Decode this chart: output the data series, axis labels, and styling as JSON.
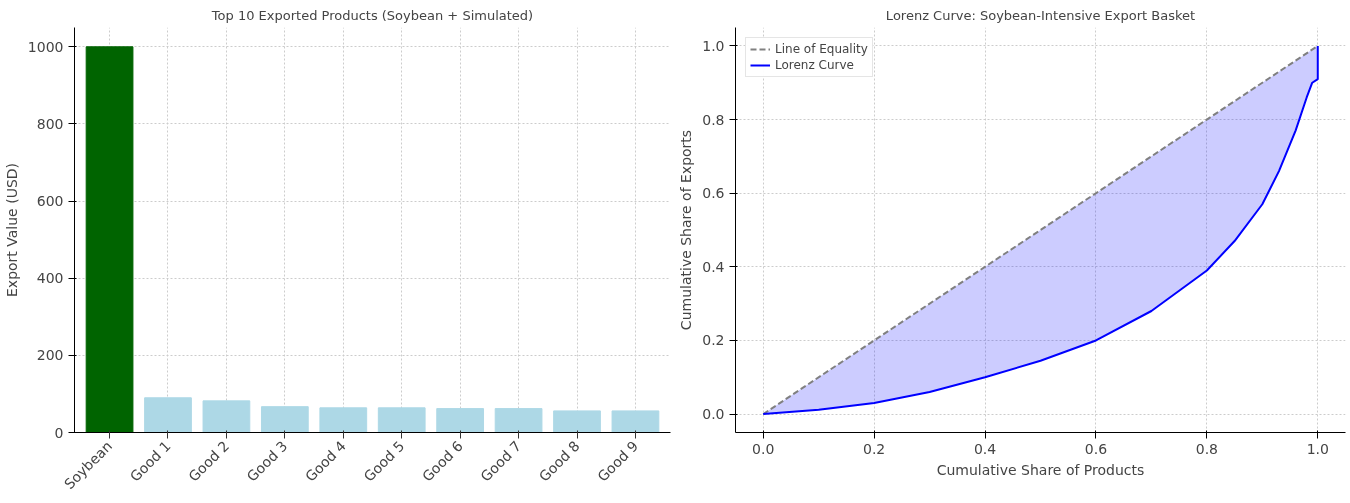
{
  "chart_data": [
    {
      "type": "bar",
      "title": "Top 10 Exported Products (Soybean + Simulated)",
      "ylabel": "Export Value (USD)",
      "categories": [
        "Soybean",
        "Good 1",
        "Good 2",
        "Good 3",
        "Good 4",
        "Good 5",
        "Good 6",
        "Good 7",
        "Good 8",
        "Good 9"
      ],
      "values": [
        1000,
        90,
        82,
        67,
        64,
        64,
        62,
        62,
        56,
        56
      ],
      "colors": [
        "#006400",
        "#add8e6",
        "#add8e6",
        "#add8e6",
        "#add8e6",
        "#add8e6",
        "#add8e6",
        "#add8e6",
        "#add8e6",
        "#add8e6"
      ],
      "ylim": [
        0,
        1050
      ],
      "yticks": [
        0,
        200,
        400,
        600,
        800,
        1000
      ],
      "grid": true
    },
    {
      "type": "line",
      "title": "Lorenz Curve: Soybean-Intensive Export Basket",
      "xlabel": "Cumulative Share of Products",
      "ylabel": "Cumulative Share of Exports",
      "legend": "top left",
      "series": [
        {
          "name": "Line of Equality",
          "color": "#808080",
          "line_style": "dashed",
          "x": [
            0,
            1
          ],
          "values": [
            0,
            1
          ]
        },
        {
          "name": "Lorenz Curve",
          "color": "#0000ff",
          "line_style": "solid",
          "x": [
            0,
            0.1,
            0.2,
            0.3,
            0.4,
            0.5,
            0.6,
            0.7,
            0.8,
            0.85,
            0.9,
            0.93,
            0.96,
            0.98,
            0.99,
            1.0,
            1.0
          ],
          "values": [
            0,
            0.012,
            0.03,
            0.06,
            0.1,
            0.145,
            0.2,
            0.28,
            0.39,
            0.47,
            0.57,
            0.66,
            0.77,
            0.86,
            0.9,
            0.91,
            1.0
          ],
          "lower": [
            0,
            0.012,
            0.03,
            0.06,
            0.1,
            0.145,
            0.2,
            0.28,
            0.39,
            0.47,
            0.57,
            0.66,
            0.77,
            0.86,
            0.9,
            0.91,
            1.0
          ],
          "upper": [
            0,
            0.1,
            0.2,
            0.3,
            0.4,
            0.5,
            0.6,
            0.7,
            0.8,
            0.85,
            0.9,
            0.93,
            0.96,
            0.98,
            0.99,
            1.0,
            1.0
          ]
        }
      ],
      "xlim": [
        -0.05,
        1.05
      ],
      "ylim": [
        -0.05,
        1.05
      ],
      "xticks": [
        {
          "value": 0,
          "label": "0.0"
        },
        {
          "value": 0.2,
          "label": "0.2"
        },
        {
          "value": 0.4,
          "label": "0.4"
        },
        {
          "value": 0.6,
          "label": "0.6"
        },
        {
          "value": 0.8,
          "label": "0.8"
        },
        {
          "value": 1,
          "label": "1.0"
        }
      ],
      "yticks": [
        {
          "value": 0,
          "label": "0.0"
        },
        {
          "value": 0.2,
          "label": "0.2"
        },
        {
          "value": 0.4,
          "label": "0.4"
        },
        {
          "value": 0.6,
          "label": "0.6"
        },
        {
          "value": 0.8,
          "label": "0.8"
        },
        {
          "value": 1,
          "label": "1.0"
        }
      ],
      "grid": true
    }
  ]
}
